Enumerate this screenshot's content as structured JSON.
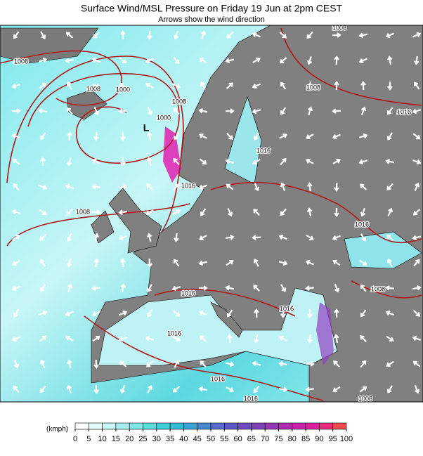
{
  "map": {
    "title": "Surface Wind/MSL Pressure on Friday 19 Jun at 2pm CEST",
    "subtitle": "Arrows show the wind direction",
    "pressure_centers": [
      "L"
    ],
    "isobar_labels": [
      "1008",
      "1008",
      "1000",
      "1008",
      "1000",
      "1016",
      "1008",
      "1008",
      "1016",
      "1016",
      "1016",
      "1016",
      "1016",
      "1016",
      "1016",
      "1008",
      "1008",
      "1016",
      "1008"
    ],
    "colorbar": {
      "unit": "(kmph)",
      "ticks": [
        0,
        5,
        10,
        15,
        20,
        25,
        30,
        35,
        40,
        45,
        50,
        55,
        60,
        65,
        70,
        75,
        80,
        85,
        90,
        95,
        100
      ],
      "colors": [
        "#ffffff",
        "#e6fbfb",
        "#c8f5f5",
        "#a6eeee",
        "#80e6e6",
        "#5cdcdc",
        "#3ccfd6",
        "#34bcd4",
        "#3aa4d4",
        "#4788d2",
        "#556cce",
        "#5f58c8",
        "#6c4cc0",
        "#7c40b8",
        "#9636b4",
        "#b02cb0",
        "#cc22ac",
        "#e01ea0",
        "#ea2a7c",
        "#f04a50"
      ]
    }
  }
}
